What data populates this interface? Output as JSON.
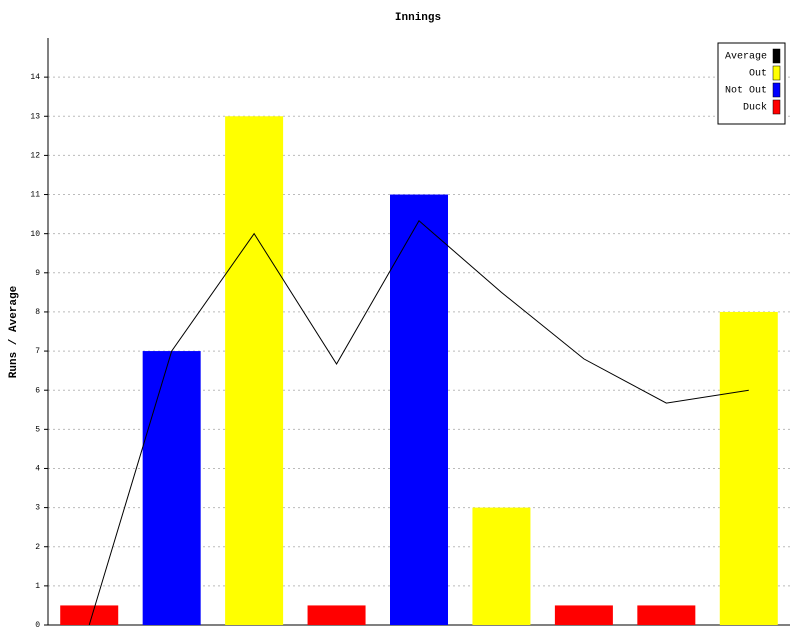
{
  "chart_data": {
    "type": "bar",
    "title": "Innings",
    "y_label": "Runs / Average",
    "categories": [
      null,
      null,
      null,
      null,
      null,
      null,
      null,
      null,
      null
    ],
    "series": [
      {
        "name": "Average",
        "type": "line",
        "color": "#000000",
        "values": [
          0,
          7,
          10,
          6.67,
          10.33,
          8.5,
          6.8,
          5.67,
          6
        ]
      },
      {
        "name": "Out",
        "color": "#ffff00",
        "values": [
          null,
          null,
          13,
          null,
          null,
          3,
          null,
          null,
          8
        ]
      },
      {
        "name": "Not Out",
        "color": "#0000ff",
        "values": [
          null,
          7,
          null,
          null,
          11,
          null,
          null,
          null,
          null
        ]
      },
      {
        "name": "Duck",
        "color": "#ff0000",
        "values": [
          0.5,
          null,
          null,
          0.5,
          null,
          null,
          0.5,
          0.5,
          null
        ]
      }
    ],
    "ylim": [
      0,
      15
    ],
    "yticks": [
      0,
      1,
      2,
      3,
      4,
      5,
      6,
      7,
      8,
      9,
      10,
      11,
      12,
      13,
      14
    ],
    "grid": true,
    "legend": "top-right"
  }
}
